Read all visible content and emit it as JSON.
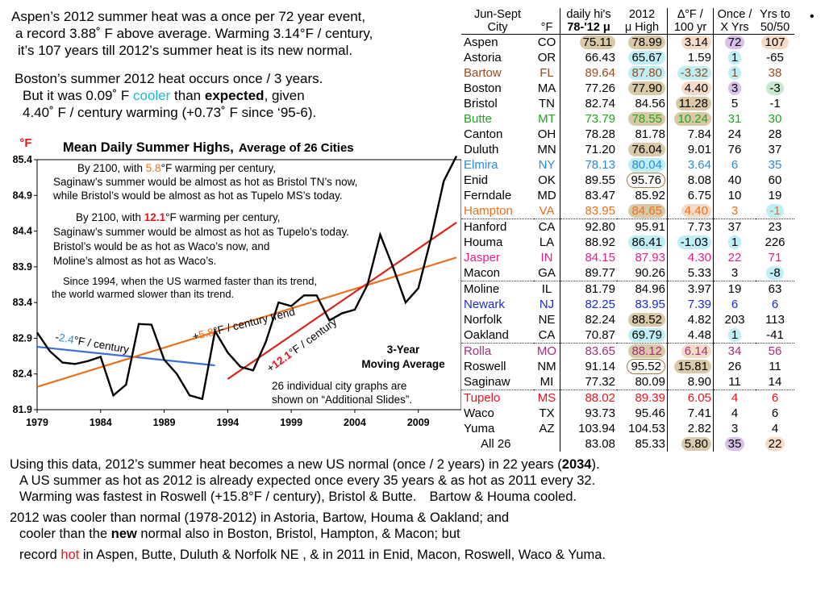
{
  "intro": {
    "l1": "Aspen’s 2012 summer heat was a once per 72 year event,",
    "l2": "a record 3.88˚ F above average. Warming 3.14°F / century,",
    "l3": "it’s 107 years till 2012’s summer heat is its new normal."
  },
  "boston": {
    "l1": "Boston’s summer 2012 heat occurs once / 3 years.",
    "l2a": "But it was 0.09˚ F ",
    "l2b": "cooler",
    "l2c": " than ",
    "l2d": "expected",
    "l2e": ", given",
    "l3": "4.40˚ F / century warming (+0.73˚ F since ‘95-6)."
  },
  "chart_data": {
    "type": "line",
    "title": "Mean Daily Summer Highs,",
    "subtitle": "Average of 26 Cities",
    "ylabel": "°F",
    "ylim": [
      81.9,
      85.4
    ],
    "yticks": [
      "85.4",
      "84.9",
      "84.4",
      "83.9",
      "83.4",
      "82.9",
      "82.4",
      "81.9"
    ],
    "xlim": [
      1979,
      2012
    ],
    "xticks": [
      "1979",
      "1984",
      "1989",
      "1994",
      "1999",
      "2004",
      "2009"
    ],
    "series": [
      {
        "name": "3-Year Moving Average",
        "x": [
          1979,
          1980,
          1981,
          1982,
          1983,
          1984,
          1985,
          1986,
          1987,
          1988,
          1989,
          1990,
          1991,
          1992,
          1993,
          1994,
          1995,
          1996,
          1997,
          1998,
          1999,
          2000,
          2001,
          2002,
          2003,
          2004,
          2005,
          2006,
          2007,
          2008,
          2009,
          2010,
          2011,
          2012
        ],
        "y": [
          82.98,
          82.72,
          82.56,
          82.54,
          82.58,
          82.64,
          82.1,
          82.25,
          83.1,
          83.09,
          82.6,
          82.4,
          82.1,
          82.05,
          83.0,
          82.7,
          82.5,
          82.45,
          82.85,
          83.4,
          83.35,
          83.5,
          83.5,
          83.15,
          83.25,
          83.3,
          83.65,
          84.35,
          83.9,
          83.4,
          83.6,
          84.3,
          85.1,
          85.45
        ]
      }
    ],
    "trendlines": [
      {
        "label_pre": "-",
        "rate": "2.4",
        "label_post": "°F / century",
        "x": [
          1979,
          1993
        ],
        "y": [
          82.78,
          82.52
        ],
        "color": "#3a6fd8"
      },
      {
        "label_pre": "+",
        "rate": "5.8",
        "label_post": "°F / century trend",
        "x": [
          1979,
          2012
        ],
        "y": [
          82.22,
          84.03
        ],
        "color": "#e8711c"
      },
      {
        "label_pre": "+",
        "rate": "12.1",
        "label_post": "°F / century",
        "x": [
          1994,
          2012
        ],
        "y": [
          82.33,
          84.52
        ],
        "color": "#d7261e"
      }
    ],
    "annotations": {
      "a1": [
        "By 2100, with ",
        "5.8",
        "°F warming per century,"
      ],
      "a1b": "Saginaw’s summer would be almost as hot as Bristol TN’s now,",
      "a1c": "while Bristol’s would be almost as hot as Tupelo MS’s today.",
      "a2": [
        "By 2100, with ",
        "12.1",
        "°F warming per century,"
      ],
      "a2b": "Saginaw’s summer would be almost as hot as Tupelo’s today.",
      "a2c": "Bristol’s would be as hot as Waco’s now, and",
      "a2d": "Moline’s almost as hot as Waco’s.",
      "a3": "Since 1994, when the US warmed faster than its trend,",
      "a3b": "the world warmed slower than its trend.",
      "ma1": "3-Year",
      "ma2": "Moving Average",
      "note1": "26 individual city graphs are",
      "note2": "shown on “Additional Slides”."
    }
  },
  "table": {
    "headers": {
      "jun": "Jun-Sept",
      "city": "City",
      "degf": "°F",
      "dh1": "daily hi's",
      "dh2": "78-'12 μ",
      "y2012a": "2012",
      "y2012b": "μ High",
      "d1": "∆°F /",
      "d2": "100 yr",
      "o1": "Once /",
      "o2": "X Yrs",
      "y1": "Yrs to",
      "y2": "50/50"
    },
    "rows": [
      {
        "city": "Aspen",
        "st": "CO",
        "mean": "75.11",
        "high": "78.99",
        "delta": "3.14",
        "once": "72",
        "yrs": "107",
        "color": "#000"
      },
      {
        "city": "Astoria",
        "st": "OR",
        "mean": "66.43",
        "high": "65.67",
        "delta": "1.59",
        "once": "1",
        "yrs": "-65",
        "color": "#000"
      },
      {
        "city": "Bartow",
        "st": "FL",
        "mean": "89.64",
        "high": "87.80",
        "delta": "-3.32",
        "once": "1",
        "yrs": "38",
        "color": "#9a4a1a"
      },
      {
        "city": "Boston",
        "st": "MA",
        "mean": "77.26",
        "high": "77.90",
        "delta": "4.40",
        "once": "3",
        "yrs": "-3",
        "color": "#000"
      },
      {
        "city": "Bristol",
        "st": "TN",
        "mean": "82.74",
        "high": "84.56",
        "delta": "11.28",
        "once": "5",
        "yrs": "-1",
        "color": "#000"
      },
      {
        "city": "Butte",
        "st": "MT",
        "mean": "73.79",
        "high": "78.55",
        "delta": "10.24",
        "once": "31",
        "yrs": "30",
        "color": "#22a322"
      },
      {
        "city": "Canton",
        "st": "OH",
        "mean": "78.28",
        "high": "81.78",
        "delta": "7.84",
        "once": "24",
        "yrs": "28",
        "color": "#000"
      },
      {
        "city": "Duluth",
        "st": "MN",
        "mean": "71.20",
        "high": "76.04",
        "delta": "9.01",
        "once": "76",
        "yrs": "37",
        "color": "#000"
      },
      {
        "city": "Elmira",
        "st": "NY",
        "mean": "78.13",
        "high": "80.04",
        "delta": "3.64",
        "once": "6",
        "yrs": "35",
        "color": "#2a8ad6"
      },
      {
        "city": "Enid",
        "st": "OK",
        "mean": "89.55",
        "high": "95.76",
        "delta": "8.08",
        "once": "40",
        "yrs": "60",
        "color": "#000"
      },
      {
        "city": "Ferndale",
        "st": "MD",
        "mean": "83.47",
        "high": "85.92",
        "delta": "6.75",
        "once": "10",
        "yrs": "19",
        "color": "#000"
      },
      {
        "city": "Hampton",
        "st": "VA",
        "mean": "83.95",
        "high": "84.65",
        "delta": "4.40",
        "once": "3",
        "yrs": "-1",
        "color": "#e8711c"
      },
      {
        "city": "Hanford",
        "st": "CA",
        "mean": "92.80",
        "high": "95.91",
        "delta": "7.73",
        "once": "37",
        "yrs": "23",
        "color": "#000"
      },
      {
        "city": "Houma",
        "st": "LA",
        "mean": "88.92",
        "high": "86.41",
        "delta": "-1.03",
        "once": "1",
        "yrs": "226",
        "color": "#000"
      },
      {
        "city": "Jasper",
        "st": "IN",
        "mean": "84.15",
        "high": "87.93",
        "delta": "4.30",
        "once": "22",
        "yrs": "71",
        "color": "#e0208a"
      },
      {
        "city": "Macon",
        "st": "GA",
        "mean": "89.77",
        "high": "90.26",
        "delta": "5.33",
        "once": "3",
        "yrs": "-8",
        "color": "#000"
      },
      {
        "city": "Moline",
        "st": "IL",
        "mean": "81.79",
        "high": "84.96",
        "delta": "3.97",
        "once": "19",
        "yrs": "63",
        "color": "#000"
      },
      {
        "city": "Newark",
        "st": "NJ",
        "mean": "82.25",
        "high": "83.95",
        "delta": "7.39",
        "once": "6",
        "yrs": "6",
        "color": "#1a2ad0"
      },
      {
        "city": "Norfolk",
        "st": "NE",
        "mean": "82.24",
        "high": "88.52",
        "delta": "4.82",
        "once": "203",
        "yrs": "113",
        "color": "#000"
      },
      {
        "city": "Oakland",
        "st": "CA",
        "mean": "70.87",
        "high": "69.79",
        "delta": "4.48",
        "once": "1",
        "yrs": "-41",
        "color": "#000"
      },
      {
        "city": "Rolla",
        "st": "MO",
        "mean": "83.65",
        "high": "88.12",
        "delta": "6.14",
        "once": "34",
        "yrs": "56",
        "color": "#a0307a"
      },
      {
        "city": "Roswell",
        "st": "NM",
        "mean": "91.14",
        "high": "95.52",
        "delta": "15.81",
        "once": "26",
        "yrs": "11",
        "color": "#000"
      },
      {
        "city": "Saginaw",
        "st": "MI",
        "mean": "77.32",
        "high": "80.09",
        "delta": "8.90",
        "once": "11",
        "yrs": "14",
        "color": "#000"
      },
      {
        "city": "Tupelo",
        "st": "MS",
        "mean": "88.02",
        "high": "89.39",
        "delta": "6.05",
        "once": "4",
        "yrs": "6",
        "color": "#e8141e"
      },
      {
        "city": "Waco",
        "st": "TX",
        "mean": "93.73",
        "high": "95.46",
        "delta": "7.41",
        "once": "4",
        "yrs": "6",
        "color": "#000"
      },
      {
        "city": "Yuma",
        "st": "AZ",
        "mean": "103.94",
        "high": "104.53",
        "delta": "2.82",
        "once": "3",
        "yrs": "4",
        "color": "#000"
      },
      {
        "city": "All 26",
        "st": "",
        "mean": "83.08",
        "high": "85.33",
        "delta": "5.80",
        "once": "35",
        "yrs": "22",
        "color": "#000"
      }
    ],
    "bullet": "•"
  },
  "bottom": {
    "p1a": "Using this data, 2012’s summer heat becomes a new US normal (once / 2 years) in 22 years (",
    "p1b": "2034",
    "p1c": ").",
    "p2": "A US summer as hot as 2012 is already expected once every 35 years & as hot as 2011 every 32.",
    "p3a": "Warming was fastest in Roswell (+15.8°F / century), Bristol & Butte.",
    "p3b": "Bartow & Houma cooled.",
    "p4": "2012 was cooler than normal (1978-2012) in Astoria, Bartow, Houma & Oakland; and",
    "p5a": "cooler than the ",
    "p5b": "new",
    "p5c": " normal also in Boston, Bristol, Hampton, & Macon; but",
    "p6a": "record ",
    "p6b": "hot",
    "p6c": " in Aspen, Butte, Duluth & Norfolk NE , & in 2011 in Enid, Macon, Roswell, Waco & Yuma."
  }
}
